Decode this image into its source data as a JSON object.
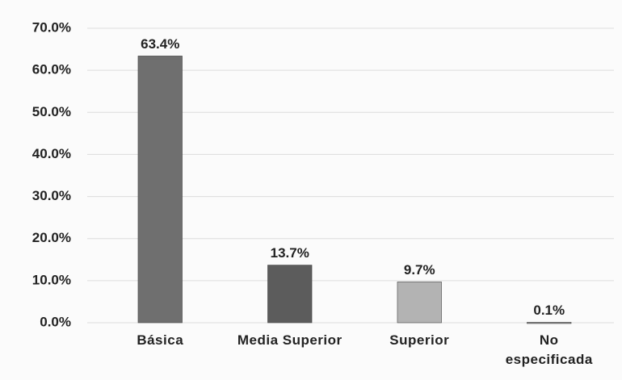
{
  "chart_data": {
    "type": "bar",
    "categories": [
      "Básica",
      "Media Superior",
      "Superior",
      "No especificada"
    ],
    "values": [
      63.4,
      13.7,
      9.7,
      0.1
    ],
    "value_labels": [
      "63.4%",
      "13.7%",
      "9.7%",
      "0.1%"
    ],
    "colors": [
      "#6f6f6f",
      "#5c5c5c",
      "#b3b3b3",
      "#8c8c8c"
    ],
    "ylim": [
      0,
      70
    ],
    "yticks": [
      {
        "value": 0,
        "label": "0.0%"
      },
      {
        "value": 10,
        "label": "10.0%"
      },
      {
        "value": 20,
        "label": "20.0%"
      },
      {
        "value": 30,
        "label": "30.0%"
      },
      {
        "value": 40,
        "label": "40.0%"
      },
      {
        "value": 50,
        "label": "50.0%"
      },
      {
        "value": 60,
        "label": "60.0%"
      },
      {
        "value": 70,
        "label": "70.0%"
      }
    ],
    "grid": true
  }
}
